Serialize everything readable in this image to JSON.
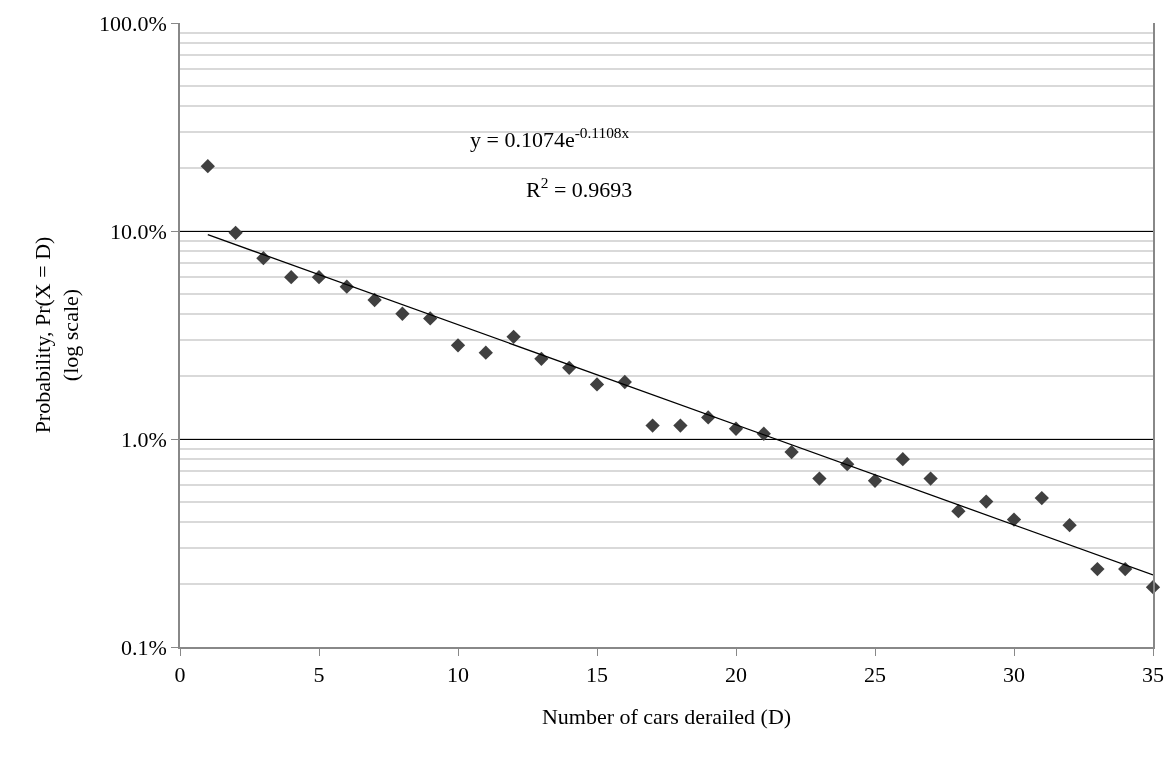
{
  "chart_data": {
    "type": "scatter",
    "xlabel": "Number of cars derailed (D)",
    "ylabel": "Probability, Pr(X = D)\n(log scale)",
    "annotations": [
      "y = 0.1074e$^{-0.1108x}$",
      "R$^{2}$ = 0.9693"
    ],
    "x": [
      1,
      2,
      3,
      4,
      5,
      6,
      7,
      8,
      9,
      10,
      11,
      12,
      13,
      14,
      15,
      16,
      17,
      18,
      19,
      20,
      21,
      22,
      23,
      24,
      25,
      26,
      27,
      28,
      29,
      30,
      31,
      32,
      33,
      34,
      35
    ],
    "series": [
      {
        "color": "#404040",
        "values": [
          20.5,
          9.8,
          7.4,
          6.0,
          6.0,
          5.4,
          4.66,
          4.0,
          3.8,
          2.82,
          2.6,
          3.1,
          2.43,
          2.2,
          1.83,
          1.88,
          1.16,
          1.16,
          1.27,
          1.12,
          1.06,
          0.865,
          0.645,
          0.757,
          0.63,
          0.8,
          0.645,
          0.45,
          0.5,
          0.41,
          0.52,
          0.385,
          0.237,
          0.237,
          0.194
        ]
      },
      {
        "type": "line",
        "marker": "none",
        "color": "#000000",
        "x": [
          1,
          35
        ],
        "values": [
          9.61,
          0.222
        ]
      }
    ],
    "log": "y",
    "xlim": [
      0,
      35
    ],
    "xticks": [
      0,
      5,
      10,
      15,
      20,
      25,
      30,
      35
    ],
    "ylim": [
      0.1,
      100
    ],
    "yticks": [
      {
        "value": 0.1,
        "label": "0.1%"
      },
      {
        "value": 1,
        "label": "1.0%"
      },
      {
        "value": 10,
        "label": "10.0%"
      },
      {
        "value": 100,
        "label": "100.0%"
      }
    ],
    "grid": "y",
    "marker": "diamond",
    "line_style": "solid"
  }
}
